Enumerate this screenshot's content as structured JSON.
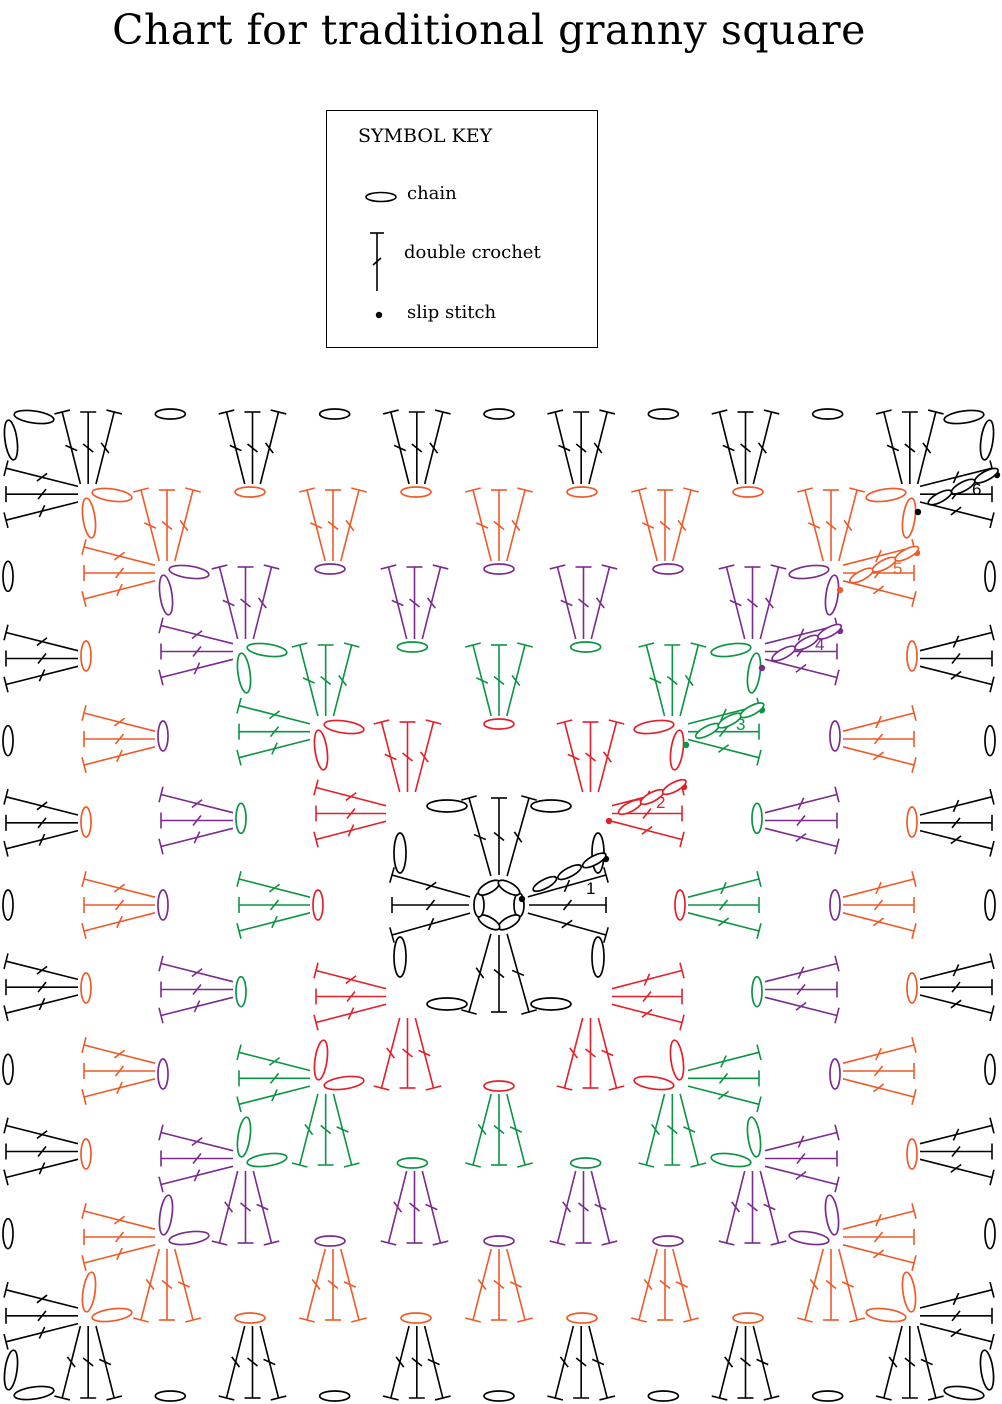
{
  "title": "Chart for traditional granny square",
  "symbol_key": {
    "heading": "SYMBOL KEY",
    "items": [
      {
        "symbol": "chain-symbol",
        "label": "chain"
      },
      {
        "symbol": "double-crochet-symbol",
        "label": "double crochet"
      },
      {
        "symbol": "slip-stitch-symbol",
        "label": "slip stitch"
      }
    ]
  },
  "rounds": [
    {
      "label": "1",
      "color": "#000000"
    },
    {
      "label": "2",
      "color": "#e3202a"
    },
    {
      "label": "3",
      "color": "#0b9444"
    },
    {
      "label": "4",
      "color": "#7b2b8e"
    },
    {
      "label": "5",
      "color": "#ef5a28"
    },
    {
      "label": "6",
      "color": "#000000"
    }
  ]
}
